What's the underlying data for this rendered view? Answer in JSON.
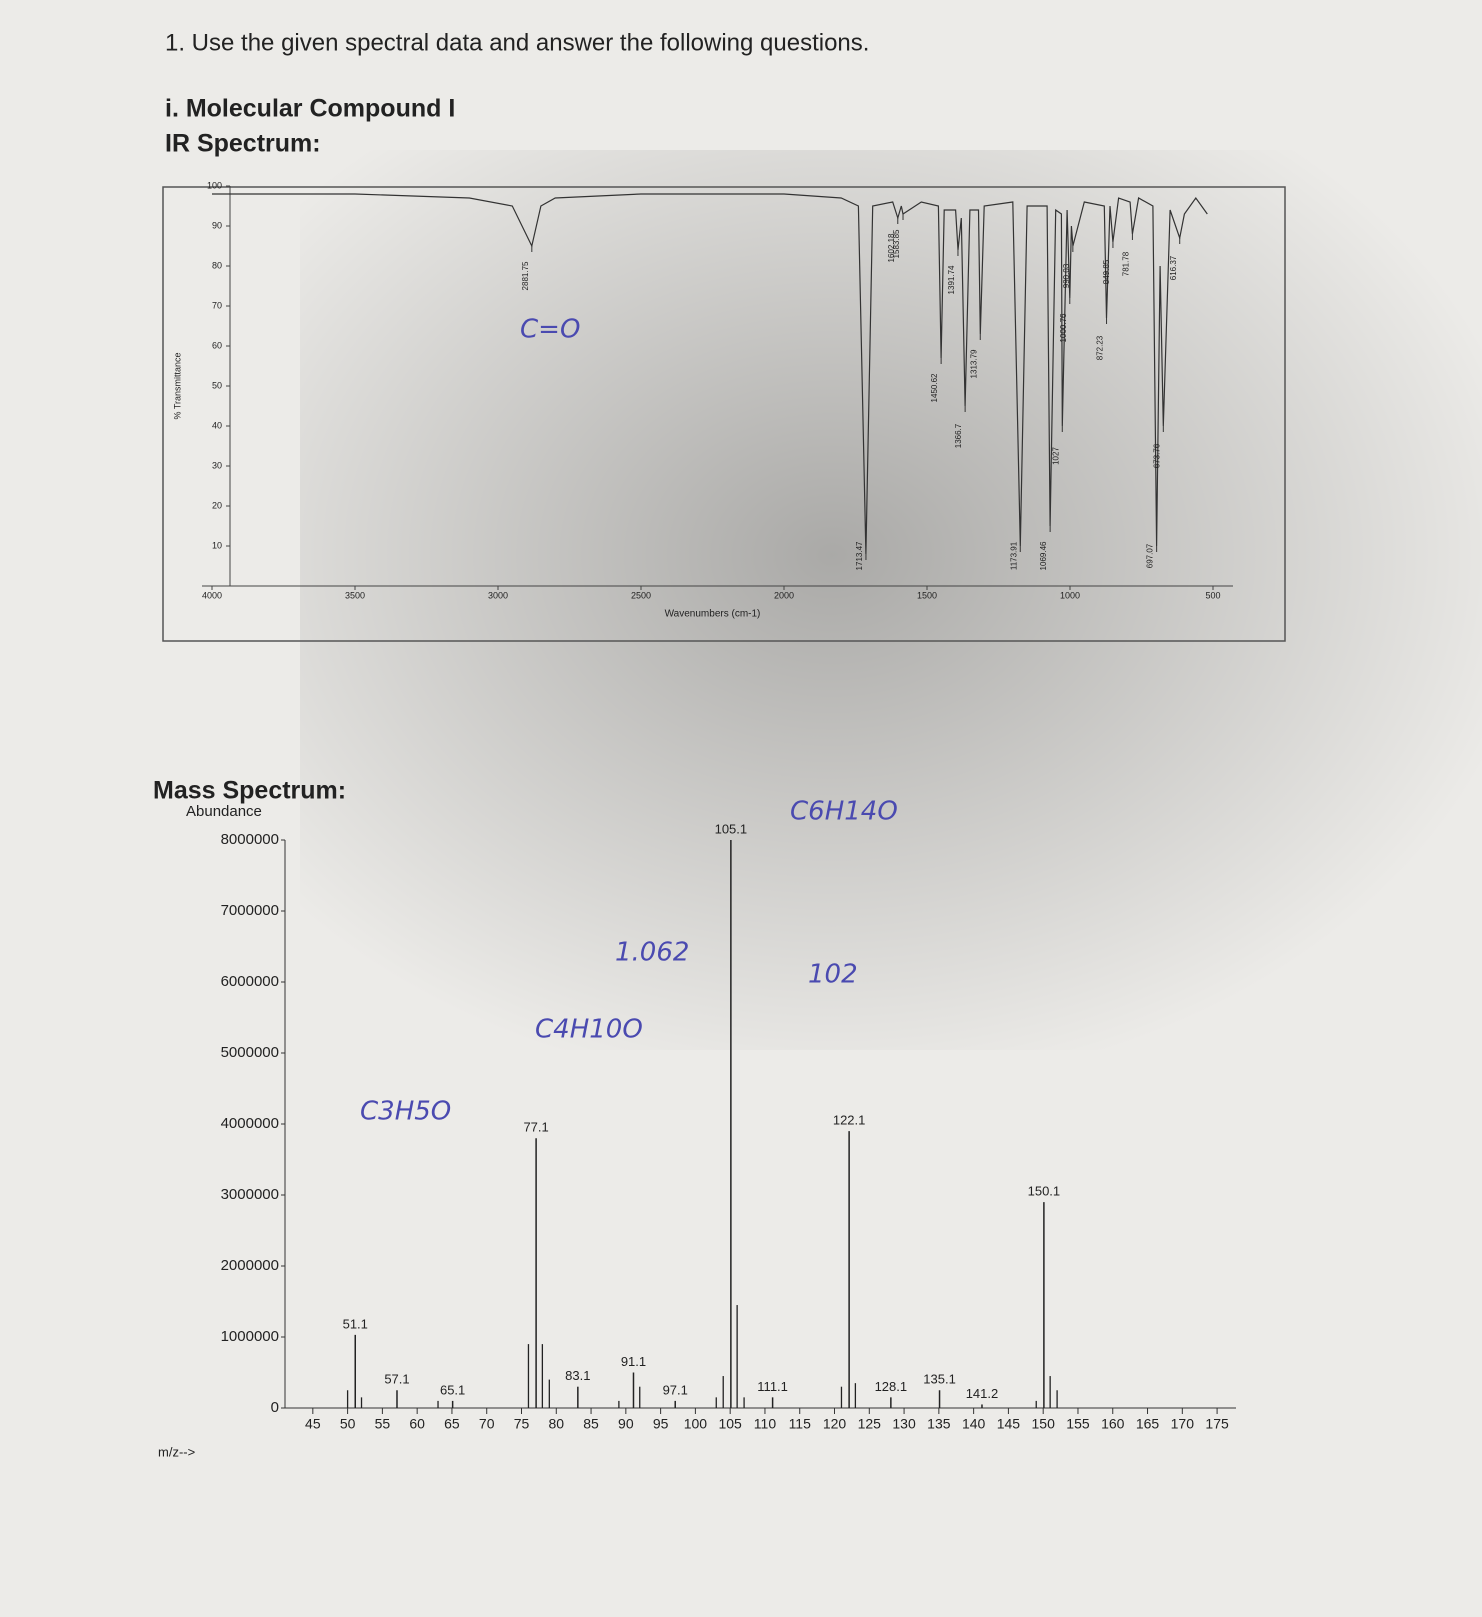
{
  "header": {
    "question": "1. Use the given spectral data and answer the following questions.",
    "compound": "i. Molecular Compound I",
    "ir_heading": "IR Spectrum:",
    "ms_heading": "Mass Spectrum:"
  },
  "chart_data": [
    {
      "type": "line",
      "x_label": "Wavenumbers (cm-1)",
      "y_label": "% Transmittance",
      "xlim": [
        4000,
        500
      ],
      "ylim": [
        0,
        100
      ],
      "xticks": [
        4000,
        3500,
        3000,
        2500,
        2000,
        1500,
        1000,
        500
      ],
      "yticks": [
        10,
        20,
        30,
        40,
        50,
        60,
        70,
        80,
        90,
        100
      ],
      "color": "#333333",
      "x": [
        4000,
        3500,
        3100,
        2950,
        2881.75,
        2850,
        2800,
        2500,
        2000,
        1800,
        1740,
        1713.47,
        1690,
        1620,
        1602.18,
        1590,
        1583.85,
        1520,
        1460,
        1450.62,
        1440,
        1400,
        1391.74,
        1380,
        1366.7,
        1350,
        1320,
        1313.79,
        1300,
        1200,
        1173.91,
        1150,
        1080,
        1069.46,
        1050,
        1030,
        1027,
        1010,
        1000.76,
        995,
        990.03,
        950,
        880,
        872.23,
        860,
        849.85,
        830,
        790,
        781.78,
        760,
        710,
        697.07,
        685,
        673.76,
        650,
        616.37,
        600,
        560,
        520
      ],
      "values": [
        98,
        98,
        97,
        95,
        85,
        95,
        97,
        98,
        98,
        97,
        95,
        8,
        95,
        96,
        92,
        95,
        93,
        96,
        95,
        57,
        94,
        94,
        84,
        92,
        45,
        94,
        94,
        63,
        95,
        96,
        10,
        95,
        95,
        15,
        94,
        93,
        40,
        94,
        72,
        90,
        85,
        96,
        95,
        67,
        95,
        86,
        97,
        96,
        88,
        97,
        95,
        10,
        80,
        40,
        94,
        87,
        93,
        97,
        93
      ],
      "peaks": [
        2881.75,
        1713.47,
        1602.18,
        1583.85,
        1450.62,
        1391.74,
        1366.7,
        1313.79,
        1173.91,
        1069.46,
        1027,
        1000.76,
        990.03,
        872.23,
        849.85,
        781.78,
        697.07,
        673.76,
        616.37
      ],
      "peak_values": [
        85,
        8,
        92,
        93,
        57,
        84,
        45,
        63,
        10,
        15,
        40,
        72,
        85,
        67,
        86,
        88,
        10,
        40,
        87
      ]
    },
    {
      "type": "bar",
      "y_label": "Abundance",
      "x_label": "m/z-->",
      "xlim": [
        41,
        177
      ],
      "ylim": [
        0,
        8000000
      ],
      "xticks": [
        45,
        50,
        55,
        60,
        65,
        70,
        75,
        80,
        85,
        90,
        95,
        100,
        105,
        110,
        115,
        120,
        125,
        130,
        135,
        140,
        145,
        150,
        155,
        160,
        165,
        170,
        175
      ],
      "yticks": [
        0,
        1000000,
        2000000,
        3000000,
        4000000,
        5000000,
        6000000,
        7000000,
        8000000
      ],
      "color": "#222222",
      "x": [
        51.1,
        57.1,
        65.1,
        77.1,
        83.1,
        91.1,
        97.1,
        105.1,
        111.1,
        122.1,
        128.1,
        135.1,
        141.2,
        150.1
      ],
      "values": [
        1030000,
        250000,
        100000,
        3800000,
        300000,
        500000,
        100000,
        8000000,
        150000,
        3900000,
        150000,
        250000,
        50000,
        2900000
      ],
      "minor_x": [
        50,
        52,
        63,
        76,
        78,
        79,
        89,
        92,
        103,
        104,
        106,
        107,
        121,
        123,
        149,
        151,
        152
      ],
      "minor_values": [
        250000,
        150000,
        100000,
        900000,
        900000,
        400000,
        100000,
        300000,
        150000,
        450000,
        1450000,
        150000,
        300000,
        350000,
        100000,
        450000,
        250000
      ]
    }
  ],
  "handwritten_notes": [
    "C=O",
    "C6H14O",
    "C4H10O",
    "C3H5O",
    "102",
    "1.062"
  ]
}
